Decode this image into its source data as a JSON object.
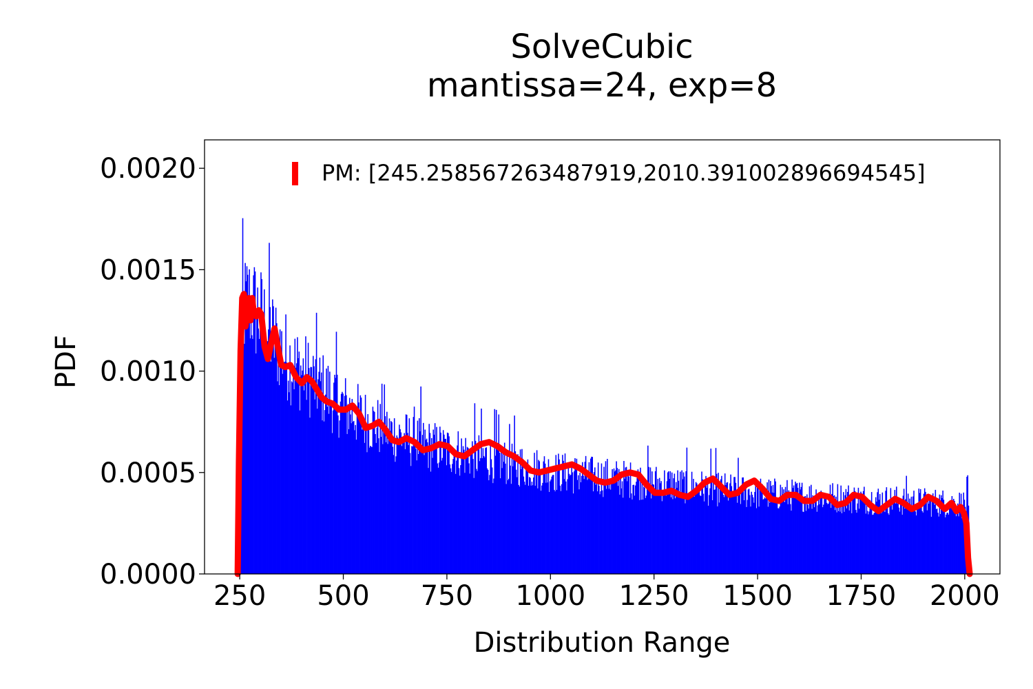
{
  "chart_data": {
    "type": "bar",
    "title_line1": "SolveCubic",
    "title_line2": "mantissa=24, exp=8",
    "xlabel": "Distribution Range",
    "ylabel": "PDF",
    "xlim": [
      165,
      2085
    ],
    "ylim": [
      0,
      0.00214
    ],
    "x_ticks": [
      250,
      500,
      750,
      1000,
      1250,
      1500,
      1750,
      2000
    ],
    "x_tick_labels": [
      "250",
      "500",
      "750",
      "1000",
      "1250",
      "1500",
      "1750",
      "2000"
    ],
    "y_ticks": [
      0,
      0.0005,
      0.001,
      0.0015,
      0.002
    ],
    "y_tick_labels": [
      "0.0000",
      "0.0005",
      "0.0010",
      "0.0015",
      "0.0020"
    ],
    "grid": false,
    "legend": {
      "placement": "top-right",
      "entries": [
        {
          "label": "PM: [245.258567263487919,2010.391002896694545]",
          "color": "#ff0000"
        }
      ]
    },
    "series": [
      {
        "type": "histogram",
        "color": "#0000ff",
        "bins": {
          "start": 250,
          "end": 2010,
          "count": 880
        },
        "envelope_x": [
          250,
          260,
          270,
          280,
          300,
          325,
          350,
          375,
          400,
          425,
          450,
          475,
          500,
          550,
          600,
          650,
          700,
          750,
          800,
          850,
          900,
          950,
          1000,
          1100,
          1200,
          1300,
          1400,
          1500,
          1600,
          1700,
          1800,
          1900,
          2000,
          2010
        ],
        "envelope_y": [
          0.001,
          0.00122,
          0.00125,
          0.00123,
          0.00118,
          0.0011,
          0.00103,
          0.00097,
          0.00093,
          0.00089,
          0.00085,
          0.00081,
          0.00077,
          0.00071,
          0.00066,
          0.00062,
          0.00059,
          0.00057,
          0.00055,
          0.00053,
          0.00051,
          0.00049,
          0.00047,
          0.00045,
          0.00043,
          0.00041,
          0.00039,
          0.00037,
          0.00036,
          0.00035,
          0.00034,
          0.00033,
          0.00032,
          0.0003
        ]
      },
      {
        "type": "line",
        "color": "#ff0000",
        "x": [
          245,
          248,
          252,
          256,
          260,
          264,
          268,
          272,
          276,
          280,
          284,
          290,
          296,
          302,
          310,
          318,
          326,
          334,
          342,
          350,
          360,
          372,
          386,
          400,
          412,
          424,
          436,
          448,
          460,
          474,
          490,
          506,
          522,
          538,
          554,
          570,
          586,
          602,
          618,
          634,
          652,
          672,
          692,
          712,
          732,
          752,
          772,
          792,
          812,
          832,
          852,
          872,
          892,
          912,
          932,
          952,
          972,
          992,
          1012,
          1032,
          1052,
          1072,
          1092,
          1112,
          1132,
          1152,
          1172,
          1192,
          1212,
          1232,
          1252,
          1272,
          1292,
          1312,
          1332,
          1352,
          1372,
          1392,
          1412,
          1432,
          1452,
          1472,
          1492,
          1512,
          1532,
          1552,
          1572,
          1592,
          1612,
          1632,
          1652,
          1672,
          1692,
          1712,
          1732,
          1752,
          1772,
          1792,
          1812,
          1832,
          1852,
          1872,
          1892,
          1912,
          1932,
          1952,
          1968,
          1980,
          1990,
          1998,
          2004,
          2008,
          2012
        ],
        "y": [
          0.0,
          0.00055,
          0.0011,
          0.00136,
          0.00138,
          0.00122,
          0.0013,
          0.00136,
          0.00125,
          0.00136,
          0.00128,
          0.00127,
          0.0013,
          0.00128,
          0.00112,
          0.00106,
          0.00114,
          0.00121,
          0.00112,
          0.00103,
          0.00102,
          0.00103,
          0.00097,
          0.00094,
          0.00097,
          0.00095,
          0.00091,
          0.00087,
          0.00085,
          0.00084,
          0.00081,
          0.00081,
          0.00083,
          0.00079,
          0.00072,
          0.00073,
          0.00075,
          0.00071,
          0.00066,
          0.00065,
          0.00067,
          0.00065,
          0.00061,
          0.00062,
          0.00064,
          0.00063,
          0.00059,
          0.00058,
          0.00061,
          0.00064,
          0.00065,
          0.00063,
          0.0006,
          0.00058,
          0.00055,
          0.00051,
          0.0005,
          0.00051,
          0.00052,
          0.00053,
          0.00054,
          0.00052,
          0.00049,
          0.00046,
          0.00045,
          0.00046,
          0.00049,
          0.0005,
          0.00049,
          0.00044,
          0.0004,
          0.0004,
          0.00041,
          0.00039,
          0.00038,
          0.00041,
          0.00045,
          0.00047,
          0.00043,
          0.00039,
          0.0004,
          0.00044,
          0.00046,
          0.00042,
          0.00037,
          0.00036,
          0.00039,
          0.00039,
          0.00036,
          0.00036,
          0.00039,
          0.00038,
          0.00034,
          0.00035,
          0.00039,
          0.00038,
          0.00034,
          0.00031,
          0.00034,
          0.00037,
          0.00035,
          0.00032,
          0.00034,
          0.00038,
          0.00036,
          0.00032,
          0.00035,
          0.00031,
          0.00033,
          0.0003,
          0.00025,
          8e-05,
          0.0
        ]
      }
    ]
  }
}
